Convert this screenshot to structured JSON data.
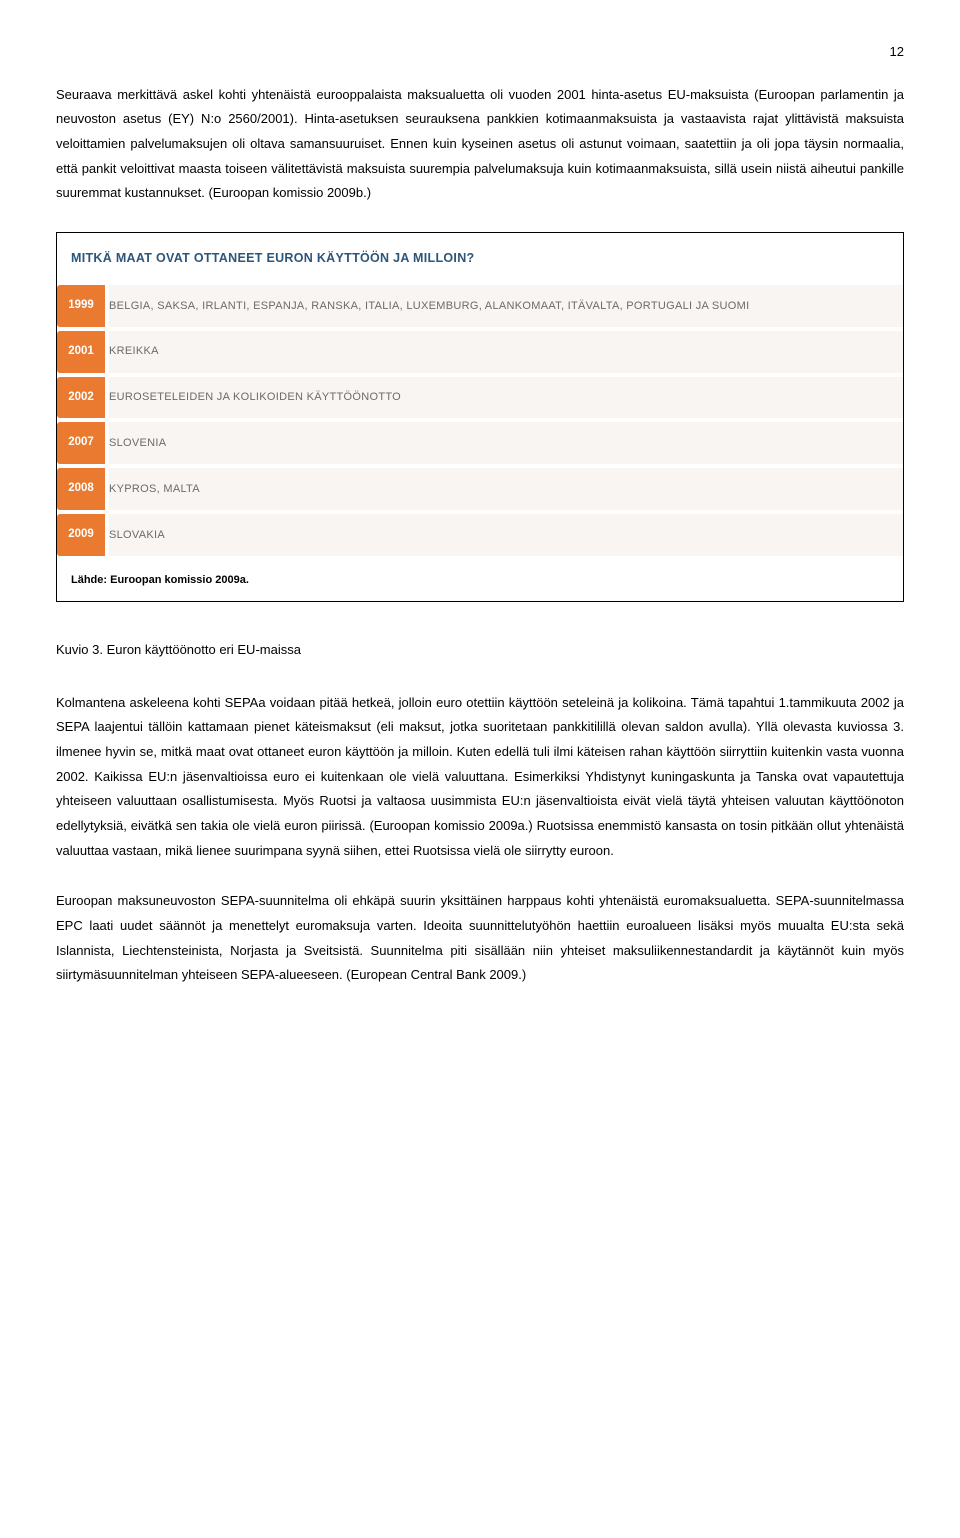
{
  "page_number": "12",
  "para1": "Seuraava merkittävä askel kohti yhtenäistä eurooppalaista maksualuetta oli vuoden 2001 hinta-asetus EU-maksuista (Euroopan parlamentin ja neuvoston asetus (EY) N:o 2560/2001). Hinta-asetuksen seurauksena pankkien kotimaanmaksuista ja vastaavista rajat ylittävistä maksuista veloittamien palvelumaksujen oli oltava samansuuruiset. Ennen kuin kyseinen asetus oli astunut voimaan, saatettiin ja oli jopa täysin normaalia, että pankit veloittivat maasta toiseen välitettävistä maksuista suurempia palvelumaksuja kuin kotimaanmaksuista, sillä usein niistä aiheutui pankille suuremmat kustannukset. (Euroopan komissio 2009b.)",
  "table": {
    "title": "MITKÄ MAAT OVAT OTTANEET EURON KÄYTTÖÖN JA MILLOIN?",
    "title_color": "#2b567a",
    "badge_bg": "#e97a2f",
    "badge_fg": "#ffffff",
    "desc_bg": "#f8f5f2",
    "desc_fg": "#6b6b6b",
    "rows": [
      {
        "year": "1999",
        "desc": "BELGIA, SAKSA, IRLANTI, ESPANJA, RANSKA, ITALIA, LUXEMBURG, ALANKOMAAT, ITÄVALTA, PORTUGALI JA SUOMI"
      },
      {
        "year": "2001",
        "desc": "KREIKKA"
      },
      {
        "year": "2002",
        "desc": "EUROSETELEIDEN JA KOLIKOIDEN KÄYTTÖÖNOTTO"
      },
      {
        "year": "2007",
        "desc": "SLOVENIA"
      },
      {
        "year": "2008",
        "desc": "KYPROS, MALTA"
      },
      {
        "year": "2009",
        "desc": "SLOVAKIA"
      }
    ],
    "source": "Lähde: Euroopan komissio 2009a."
  },
  "caption": "Kuvio 3. Euron käyttöönotto eri EU-maissa",
  "para2": "Kolmantena askeleena kohti SEPAa voidaan pitää hetkeä, jolloin euro otettiin käyttöön seteleinä ja kolikoina. Tämä tapahtui 1.tammikuuta 2002 ja SEPA laajentui tällöin kattamaan pienet käteismaksut (eli maksut, jotka suoritetaan pankkitilillä olevan saldon avulla). Yllä olevasta kuviossa 3. ilmenee hyvin se, mitkä maat ovat ottaneet euron käyttöön ja milloin. Kuten edellä tuli ilmi käteisen rahan käyttöön siirryttiin kuitenkin vasta vuonna 2002. Kaikissa EU:n jäsenvaltioissa euro ei kuitenkaan ole vielä valuuttana. Esimerkiksi Yhdistynyt kuningaskunta ja Tanska ovat vapautettuja yhteiseen valuuttaan osallistumisesta. Myös Ruotsi ja valtaosa uusimmista EU:n jäsenvaltioista eivät vielä täytä yhteisen valuutan käyttöönoton edellytyksiä, eivätkä sen takia ole vielä euron piirissä. (Euroopan komissio 2009a.) Ruotsissa enemmistö kansasta on tosin pitkään ollut yhtenäistä valuuttaa vastaan, mikä lienee suurimpana syynä siihen, ettei Ruotsissa vielä ole siirrytty euroon.",
  "para3": "Euroopan maksuneuvoston SEPA-suunnitelma oli ehkäpä suurin yksittäinen harppaus kohti yhtenäistä euromaksualuetta. SEPA-suunnitelmassa EPC laati uudet säännöt ja menettelyt euromaksuja varten. Ideoita suunnittelutyöhön haettiin euroalueen lisäksi myös muualta EU:sta sekä Islannista, Liechtensteinista, Norjasta ja Sveitsistä. Suunnitelma piti sisällään niin yhteiset maksuliikennestandardit ja käytännöt kuin myös siirtymäsuunnitelman yhteiseen SEPA-alueeseen. (European Central Bank 2009.)"
}
